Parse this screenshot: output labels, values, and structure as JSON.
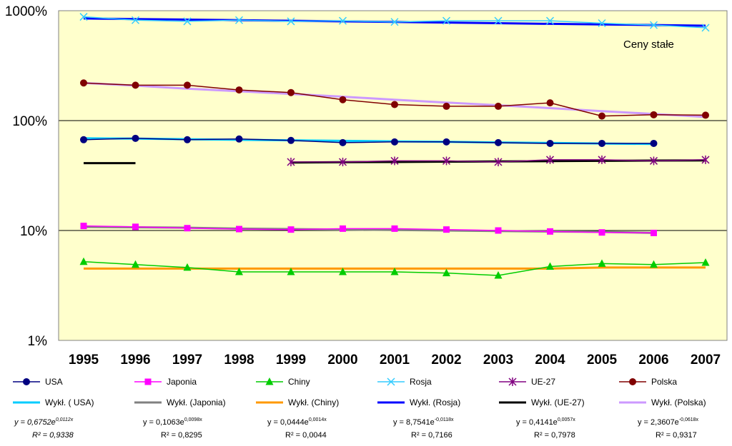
{
  "chart_data": {
    "type": "line",
    "y_scale": "log",
    "y_ticks": [
      "1%",
      "10%",
      "100%",
      "1000%"
    ],
    "y_tick_values": [
      1,
      10,
      100,
      1000
    ],
    "ylim": [
      1,
      1000
    ],
    "categories": [
      "1995",
      "1996",
      "1997",
      "1998",
      "1999",
      "2000",
      "2001",
      "2002",
      "2003",
      "2004",
      "2005",
      "2006",
      "2007"
    ],
    "annotation": "Ceny stałe",
    "background": "#FFFFCC",
    "grid": "horizontal",
    "legend_position": "bottom",
    "series": [
      {
        "name": "USA",
        "color": "#000080",
        "marker": "circle",
        "values": [
          67,
          69,
          67,
          68,
          66,
          63,
          64,
          64,
          63,
          62,
          62,
          62,
          null
        ]
      },
      {
        "name": "Japonia",
        "color": "#FF00FF",
        "marker": "square",
        "values": [
          11,
          10.8,
          10.5,
          10.3,
          10.2,
          10.4,
          10.4,
          10.2,
          10,
          9.8,
          9.6,
          9.5,
          null
        ]
      },
      {
        "name": "Chiny",
        "color": "#00CC00",
        "marker": "triangle",
        "values": [
          5.2,
          4.9,
          4.6,
          4.2,
          4.2,
          4.2,
          4.2,
          4.1,
          3.9,
          4.7,
          5,
          4.9,
          5.1
        ]
      },
      {
        "name": "Rosja",
        "color": "#33CCFF",
        "marker": "x",
        "values": [
          880,
          820,
          800,
          820,
          800,
          810,
          790,
          810,
          810,
          810,
          770,
          740,
          700
        ]
      },
      {
        "name": "UE-27",
        "color": "#800080",
        "marker": "asterisk",
        "values": [
          null,
          null,
          null,
          null,
          42,
          42,
          43,
          43,
          42,
          44,
          44,
          43,
          44
        ]
      },
      {
        "name": "Polska",
        "color": "#800000",
        "marker": "circle",
        "values": [
          220,
          210,
          210,
          190,
          180,
          155,
          140,
          135,
          135,
          145,
          110,
          113,
          112
        ]
      },
      {
        "name": "Wykł. ( USA)",
        "color": "#00CCFF",
        "marker": "none",
        "values": [
          69,
          68.5,
          67.7,
          66.9,
          66.2,
          65.4,
          64.7,
          64,
          63.3,
          62.6,
          61.9,
          61.2,
          null
        ]
      },
      {
        "name": "Wykł. (Japonia)",
        "color": "#808080",
        "marker": "none",
        "values": [
          10.8,
          10.7,
          10.6,
          10.4,
          10.3,
          10.2,
          10.1,
          10,
          9.9,
          9.8,
          9.7,
          9.5,
          null
        ]
      },
      {
        "name": "Wykł. (Chiny)",
        "color": "#FF9900",
        "marker": "none",
        "values": [
          4.5,
          4.5,
          4.5,
          4.5,
          4.5,
          4.5,
          4.5,
          4.5,
          4.5,
          4.5,
          4.6,
          4.6,
          4.6
        ]
      },
      {
        "name": "Wykł. (Rosja)",
        "color": "#0000FF",
        "marker": "none",
        "values": [
          850,
          840,
          830,
          820,
          810,
          800,
          790,
          780,
          770,
          760,
          750,
          740,
          730
        ]
      },
      {
        "name": "Wykł. (UE-27)",
        "color": "#000000",
        "marker": "none",
        "values": [
          41,
          41,
          null,
          null,
          41.5,
          41.8,
          42,
          42.3,
          42.5,
          42.8,
          43,
          43.3,
          43.5
        ]
      },
      {
        "name": "Wykł. (Polska)",
        "color": "#CC99FF",
        "marker": "none",
        "values": [
          220,
          208,
          195,
          185,
          175,
          165,
          155,
          146,
          138,
          130,
          122,
          115,
          108
        ]
      }
    ],
    "trendline_equations": [
      {
        "text": "y = 0,6752e",
        "exp": "0,0112x",
        "r2": "R² = 0,9338",
        "italic": true
      },
      {
        "text": "y = 0,1063e",
        "exp": "0,0098x",
        "r2": "R² = 0,8295",
        "italic": false
      },
      {
        "text": "y = 0,0444e",
        "exp": "0,0014x",
        "r2": "R² = 0,0044",
        "italic": false
      },
      {
        "text": "y = 8,7541e",
        "exp": "-0,0118x",
        "r2": "R² = 0,7166",
        "italic": false
      },
      {
        "text": "y = 0,4141e",
        "exp": "0,0057x",
        "r2": "R² = 0,7978",
        "italic": false
      },
      {
        "text": "y = 2,3607e",
        "exp": "-0,0618x",
        "r2": "R² = 0,9317",
        "italic": false
      }
    ]
  }
}
